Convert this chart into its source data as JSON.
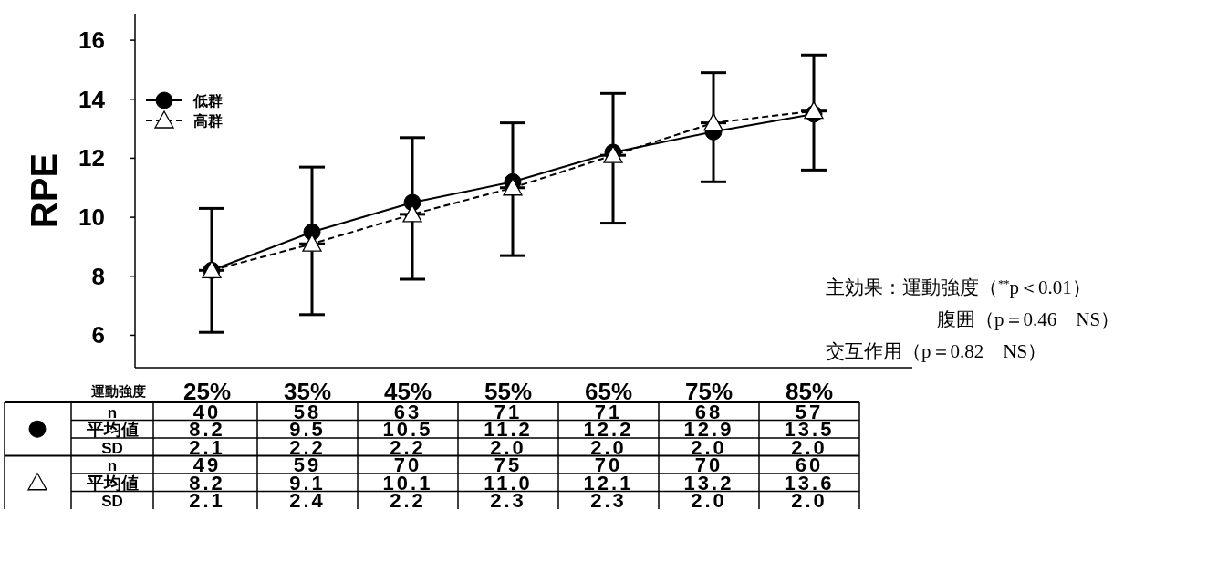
{
  "chart_data": {
    "type": "line",
    "xlabel": "運動強度",
    "ylabel": "RPE",
    "categories": [
      "25%",
      "35%",
      "45%",
      "55%",
      "65%",
      "75%",
      "85%"
    ],
    "ylim": [
      4.9,
      16.9
    ],
    "yticks": [
      6,
      8,
      10,
      12,
      14,
      16
    ],
    "legend": "top left",
    "series": [
      {
        "name": "低群",
        "color": "#000000",
        "marker": "circle",
        "line_style": "solid",
        "values": [
          8.2,
          9.5,
          10.5,
          11.2,
          12.2,
          12.9,
          13.5
        ],
        "value_labels": [
          "8.2",
          "9.5",
          "10.5",
          "11.2",
          "12.2",
          "12.9",
          "13.5"
        ],
        "errors": [
          [
            8.2,
            10.3
          ],
          [
            9.5,
            11.7
          ],
          [
            10.5,
            12.7
          ],
          [
            11.2,
            13.2
          ],
          [
            12.2,
            14.2
          ],
          [
            12.9,
            14.9
          ],
          [
            13.5,
            15.5
          ]
        ]
      },
      {
        "name": "高群",
        "color": "#000000",
        "marker": "triangle",
        "line_style": "dashed",
        "values": [
          8.2,
          9.1,
          10.1,
          11.0,
          12.1,
          13.2,
          13.6
        ],
        "value_labels": [
          "8.2",
          "9.1",
          "10.1",
          "11.0",
          "12.1",
          "13.2",
          "13.6"
        ],
        "errors": [
          [
            6.1,
            8.2
          ],
          [
            6.7,
            9.1
          ],
          [
            7.9,
            10.1
          ],
          [
            8.7,
            11.0
          ],
          [
            9.8,
            12.1
          ],
          [
            11.2,
            13.2
          ],
          [
            11.6,
            13.6
          ]
        ]
      }
    ],
    "annotations": [
      "主効果：運動強度（$^{**}$p＜0.01）",
      "腹囲（p＝0.46　NS）",
      "交互作用（p＝0.82　NS）",
      "n",
      "平均値",
      "SD",
      "40",
      "58",
      "63",
      "71",
      "71",
      "68",
      "57",
      "2.1",
      "2.2",
      "2.2",
      "2.0",
      "2.0",
      "2.0",
      "2.0",
      "49",
      "59",
      "70",
      "75",
      "70",
      "70",
      "60",
      "2.1",
      "2.4",
      "2.2",
      "2.3",
      "2.3",
      "2.0",
      "2.0"
    ]
  }
}
